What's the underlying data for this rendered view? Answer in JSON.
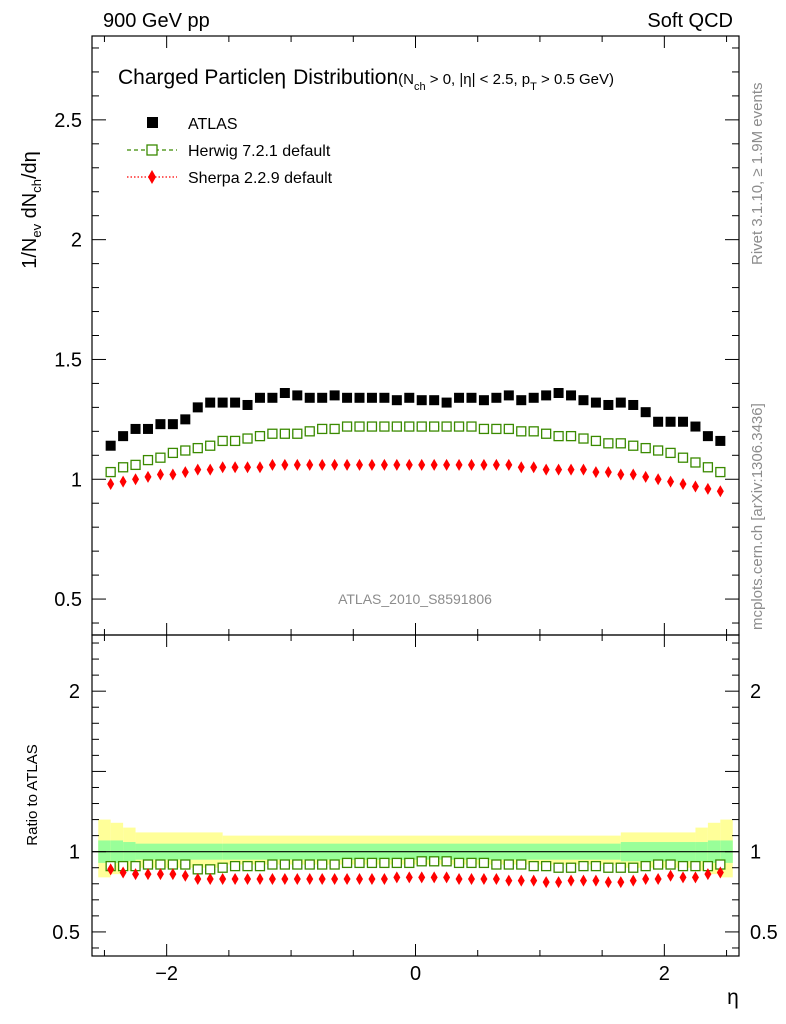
{
  "header": {
    "left": "900 GeV pp",
    "right": "Soft QCD"
  },
  "side_text": {
    "rivet": "Rivet 3.1.10, ≥ 1.9M events",
    "mcplots": "mcplots.cern.ch [arXiv:1306.3436]"
  },
  "chart_data": {
    "type": "scatter",
    "title_main": "Charged Particle",
    "title_eta": "η",
    "title_dist": "Distribution",
    "title_cuts": {
      "p1": "(N",
      "s1": "ch",
      "p2": " > 0, |η| < 2.5, p",
      "s2": "T",
      "p3": " > 0.5 GeV)"
    },
    "analysis_id": "ATLAS_2010_S8591806",
    "ylabel_parts": {
      "a": "1/N",
      "a_sub": "ev",
      "b": " dN",
      "b_sub": "ch",
      "c": "/dη"
    },
    "xlabel": "η",
    "ratio_ylabel": "Ratio to ATLAS",
    "xlim": [
      -2.6,
      2.6
    ],
    "ylim": [
      0.35,
      2.85
    ],
    "ratio_ylim": [
      0.35,
      2.35
    ],
    "x_ticks": [
      -2,
      0,
      2
    ],
    "x_tick_labels": [
      "−2",
      "0",
      "2"
    ],
    "y_ticks": [
      0.5,
      1,
      1.5,
      2,
      2.5
    ],
    "y_tick_labels": [
      "0.5",
      "1",
      "1.5",
      "2",
      "2.5"
    ],
    "ratio_y_ticks": [
      0.5,
      1,
      2
    ],
    "ratio_y_tick_labels": [
      "0.5",
      "1",
      "2"
    ],
    "eta_centers": [
      -2.45,
      -2.35,
      -2.25,
      -2.15,
      -2.05,
      -1.95,
      -1.85,
      -1.75,
      -1.65,
      -1.55,
      -1.45,
      -1.35,
      -1.25,
      -1.15,
      -1.05,
      -0.95,
      -0.85,
      -0.75,
      -0.65,
      -0.55,
      -0.45,
      -0.35,
      -0.25,
      -0.15,
      -0.05,
      0.05,
      0.15,
      0.25,
      0.35,
      0.45,
      0.55,
      0.65,
      0.75,
      0.85,
      0.95,
      1.05,
      1.15,
      1.25,
      1.35,
      1.45,
      1.55,
      1.65,
      1.75,
      1.85,
      1.95,
      2.05,
      2.15,
      2.25,
      2.35,
      2.45
    ],
    "series": [
      {
        "name": "ATLAS",
        "marker": "square-filled",
        "color": "#000000",
        "values": [
          1.14,
          1.18,
          1.21,
          1.21,
          1.23,
          1.23,
          1.25,
          1.3,
          1.32,
          1.32,
          1.32,
          1.31,
          1.34,
          1.34,
          1.36,
          1.35,
          1.34,
          1.34,
          1.35,
          1.34,
          1.34,
          1.34,
          1.34,
          1.33,
          1.34,
          1.33,
          1.33,
          1.32,
          1.34,
          1.34,
          1.33,
          1.34,
          1.35,
          1.33,
          1.34,
          1.35,
          1.36,
          1.35,
          1.33,
          1.32,
          1.31,
          1.32,
          1.31,
          1.28,
          1.24,
          1.24,
          1.24,
          1.22,
          1.18,
          1.16
        ]
      },
      {
        "name": "Herwig 7.2.1 default",
        "marker": "square-open",
        "color": "#3a8a00",
        "values": [
          1.03,
          1.05,
          1.06,
          1.08,
          1.09,
          1.11,
          1.12,
          1.13,
          1.14,
          1.16,
          1.16,
          1.17,
          1.18,
          1.19,
          1.19,
          1.19,
          1.2,
          1.21,
          1.21,
          1.22,
          1.22,
          1.22,
          1.22,
          1.22,
          1.22,
          1.22,
          1.22,
          1.22,
          1.22,
          1.22,
          1.21,
          1.21,
          1.21,
          1.2,
          1.2,
          1.19,
          1.18,
          1.18,
          1.17,
          1.16,
          1.15,
          1.15,
          1.14,
          1.13,
          1.12,
          1.11,
          1.09,
          1.07,
          1.05,
          1.03
        ]
      },
      {
        "name": "Sherpa 2.2.9 default",
        "marker": "diamond-filled",
        "color": "#ff0000",
        "values": [
          0.98,
          0.99,
          1.0,
          1.01,
          1.02,
          1.02,
          1.03,
          1.04,
          1.04,
          1.05,
          1.05,
          1.05,
          1.05,
          1.06,
          1.06,
          1.06,
          1.06,
          1.06,
          1.06,
          1.06,
          1.06,
          1.06,
          1.06,
          1.06,
          1.06,
          1.06,
          1.06,
          1.06,
          1.06,
          1.06,
          1.06,
          1.06,
          1.06,
          1.05,
          1.05,
          1.04,
          1.04,
          1.04,
          1.04,
          1.03,
          1.03,
          1.02,
          1.02,
          1.01,
          1.0,
          0.99,
          0.98,
          0.97,
          0.96,
          0.95
        ]
      }
    ],
    "ratio_series": [
      {
        "name": "Herwig 7.2.1 default",
        "values": [
          0.91,
          0.91,
          0.91,
          0.92,
          0.92,
          0.92,
          0.92,
          0.89,
          0.89,
          0.9,
          0.91,
          0.91,
          0.91,
          0.92,
          0.92,
          0.92,
          0.92,
          0.92,
          0.92,
          0.93,
          0.93,
          0.93,
          0.93,
          0.93,
          0.93,
          0.94,
          0.94,
          0.94,
          0.93,
          0.93,
          0.93,
          0.92,
          0.92,
          0.92,
          0.91,
          0.91,
          0.9,
          0.9,
          0.91,
          0.91,
          0.9,
          0.9,
          0.9,
          0.91,
          0.92,
          0.92,
          0.91,
          0.91,
          0.91,
          0.92
        ]
      },
      {
        "name": "Sherpa 2.2.9 default",
        "values": [
          0.89,
          0.87,
          0.86,
          0.86,
          0.86,
          0.86,
          0.85,
          0.83,
          0.83,
          0.83,
          0.83,
          0.83,
          0.83,
          0.83,
          0.83,
          0.83,
          0.83,
          0.83,
          0.83,
          0.83,
          0.83,
          0.83,
          0.83,
          0.84,
          0.84,
          0.84,
          0.84,
          0.84,
          0.83,
          0.83,
          0.83,
          0.83,
          0.82,
          0.82,
          0.82,
          0.81,
          0.81,
          0.82,
          0.82,
          0.82,
          0.81,
          0.81,
          0.82,
          0.83,
          0.83,
          0.85,
          0.84,
          0.84,
          0.86,
          0.87
        ]
      }
    ],
    "ratio_bands": {
      "edges": [
        -2.55,
        -2.45,
        -2.35,
        -2.25,
        -1.55,
        1.65,
        2.25,
        2.35,
        2.45,
        2.55
      ],
      "green_lo": [
        0.93,
        0.93,
        0.94,
        0.95,
        0.95,
        0.94,
        0.94,
        0.93,
        0.93
      ],
      "green_hi": [
        1.07,
        1.07,
        1.06,
        1.05,
        1.05,
        1.06,
        1.06,
        1.07,
        1.07
      ],
      "yellow_lo": [
        0.84,
        0.86,
        0.88,
        0.9,
        0.92,
        0.9,
        0.88,
        0.86,
        0.84
      ],
      "yellow_hi": [
        1.2,
        1.18,
        1.15,
        1.12,
        1.1,
        1.12,
        1.15,
        1.18,
        1.2
      ],
      "green_color": "#99ff99",
      "yellow_color": "#ffff99"
    }
  }
}
